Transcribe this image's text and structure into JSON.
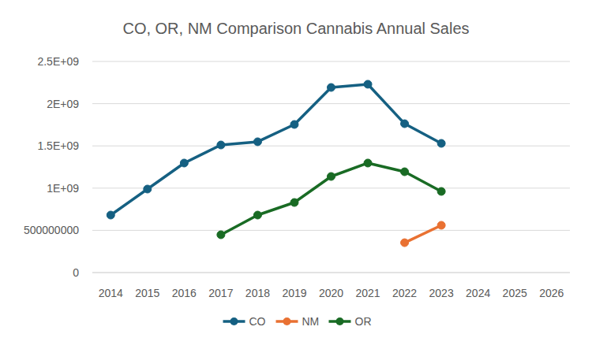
{
  "chart_data": {
    "type": "line",
    "title": "CO, OR, NM Comparison Cannabis Annual Sales",
    "categories": [
      "2014",
      "2015",
      "2016",
      "2017",
      "2018",
      "2019",
      "2020",
      "2021",
      "2022",
      "2023",
      "2024",
      "2025",
      "2026"
    ],
    "series": [
      {
        "name": "CO",
        "color": "#156082",
        "values": [
          681000000,
          989000000,
          1297000000,
          1511000000,
          1549000000,
          1754000000,
          2192000000,
          2230000000,
          1763000000,
          1530000000,
          null,
          null,
          null
        ]
      },
      {
        "name": "NM",
        "color": "#e97132",
        "values": [
          null,
          null,
          null,
          null,
          null,
          null,
          null,
          null,
          354000000,
          560000000,
          null,
          null,
          null
        ]
      },
      {
        "name": "OR",
        "color": "#196b24",
        "values": [
          null,
          null,
          null,
          448000000,
          681000000,
          830000000,
          1138000000,
          1297000000,
          1194000000,
          961000000,
          null,
          null,
          null
        ]
      }
    ],
    "ylim": [
      0,
      2500000000
    ],
    "yticks": [
      0,
      500000000,
      {
        "value": 1000000000,
        "label": "1E+09"
      },
      {
        "value": 1500000000,
        "label": "1.5E+09"
      },
      {
        "value": 2000000000,
        "label": "2E+09"
      },
      {
        "value": 2500000000,
        "label": "2.5E+09"
      }
    ],
    "grid": true,
    "legend": "bottom",
    "marker": "circle",
    "line_style": "solid"
  }
}
